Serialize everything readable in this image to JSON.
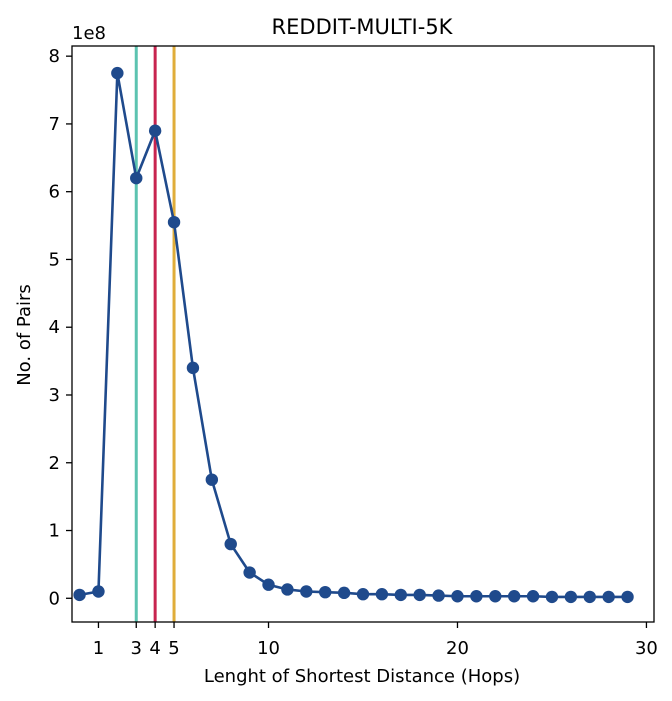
{
  "chart_data": {
    "type": "line",
    "title": "REDDIT-MULTI-5K",
    "xlabel": "Lenght of Shortest Distance (Hops)",
    "ylabel": "No. of Pairs",
    "y_offset_label": "1e8",
    "xlim": [
      -0.4,
      30.4
    ],
    "ylim": [
      -0.35,
      8.15
    ],
    "y_scale": 100000000,
    "x_ticks": [
      1,
      3,
      4,
      5,
      10,
      20,
      30
    ],
    "y_ticks": [
      0,
      1,
      2,
      3,
      4,
      5,
      6,
      7,
      8
    ],
    "grid": false,
    "series": [
      {
        "color": "#1f4a8c",
        "marker": "circle",
        "x": [
          0,
          1,
          2,
          3,
          4,
          5,
          6,
          7,
          8,
          9,
          10,
          11,
          12,
          13,
          14,
          15,
          16,
          17,
          18,
          19,
          20,
          21,
          22,
          23,
          24,
          25,
          26,
          27,
          28,
          29
        ],
        "y": [
          0.05,
          0.1,
          7.75,
          6.2,
          6.9,
          5.55,
          3.4,
          1.75,
          0.8,
          0.38,
          0.2,
          0.13,
          0.1,
          0.09,
          0.08,
          0.06,
          0.06,
          0.05,
          0.05,
          0.04,
          0.03,
          0.03,
          0.03,
          0.03,
          0.03,
          0.02,
          0.02,
          0.02,
          0.02,
          0.02
        ]
      }
    ],
    "vertical_lines": [
      {
        "x": 3,
        "color": "#5cc3b0"
      },
      {
        "x": 4,
        "color": "#c8244f"
      },
      {
        "x": 5,
        "color": "#e0ad3a"
      }
    ]
  }
}
